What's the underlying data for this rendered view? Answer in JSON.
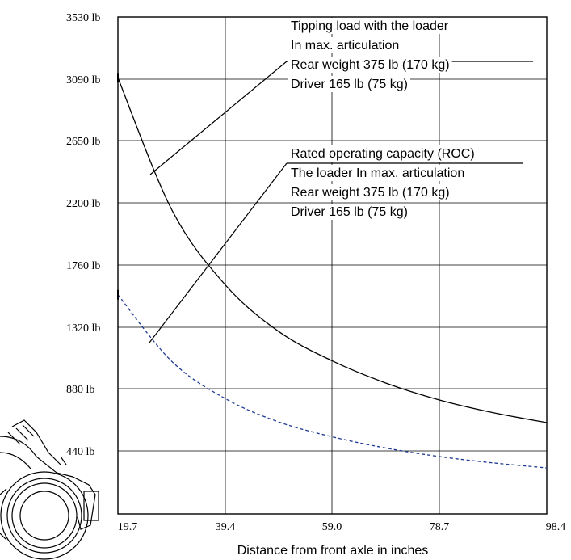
{
  "chart_data": {
    "type": "line",
    "xlabel": "Distance from front axle in inches",
    "ylabel": "",
    "title": "",
    "x_ticks": [
      "19.7",
      "39.4",
      "59.0",
      "78.7",
      "98.4"
    ],
    "y_ticks": [
      "3530 lb",
      "3090 lb",
      "2650 lb",
      "2200 lb",
      "1760 lb",
      "1320 lb",
      "880 lb",
      "440 lb"
    ],
    "xlim": [
      19.7,
      98.4
    ],
    "ylim": [
      0,
      3530
    ],
    "grid": true,
    "series": [
      {
        "style": "solid",
        "color": "#000000",
        "x": [
          19.7,
          29.6,
          39.4,
          49.2,
          59.0,
          68.9,
          78.7,
          88.6,
          98.4
        ],
        "y": [
          3100,
          2150,
          1620,
          1290,
          1080,
          920,
          800,
          710,
          640
        ]
      },
      {
        "style": "dashed",
        "color": "#1f3a93",
        "x": [
          19.7,
          29.6,
          39.4,
          49.2,
          59.0,
          68.9,
          78.7,
          88.6,
          98.4
        ],
        "y": [
          1550,
          1075,
          810,
          645,
          540,
          460,
          400,
          355,
          320
        ]
      }
    ],
    "annotations": [
      {
        "target": "solid",
        "lines": [
          "Tipping load with the loader",
          "In max. articulation",
          "Rear weight 375 lb (170 kg)",
          "Driver 165 lb (75 kg)"
        ]
      },
      {
        "target": "dashed",
        "lines": [
          "Rated operating capacity (ROC)",
          "The loader In max. articulation",
          "Rear weight 375 lb (170 kg)",
          "Driver 165 lb (75 kg)"
        ]
      }
    ]
  }
}
